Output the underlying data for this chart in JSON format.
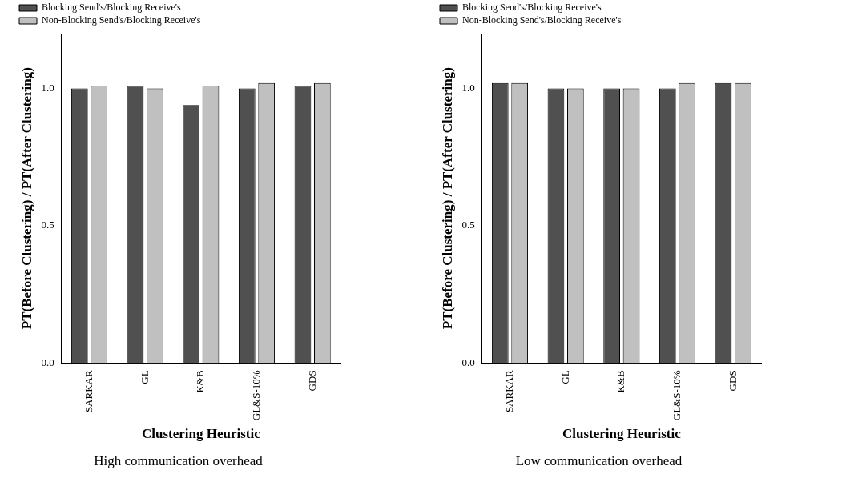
{
  "chart_data": [
    {
      "type": "bar",
      "title": "High communication overhead",
      "xlabel": "Clustering Heuristic",
      "ylabel": "PT(Before Clustering) / PT(After Clustering)",
      "categories": [
        "SARKAR",
        "GL",
        "K&B",
        "GL&S-10%",
        "GDS"
      ],
      "series": [
        {
          "name": "Blocking Send's/Blocking Receive's",
          "color": "#505050",
          "values": [
            1.0,
            1.01,
            0.94,
            1.0,
            1.01
          ]
        },
        {
          "name": "Non-Blocking Send's/Blocking Receive's",
          "color": "#c0c0c0",
          "values": [
            1.01,
            1.0,
            1.01,
            1.02,
            1.02
          ]
        }
      ],
      "ylim": [
        0,
        1.2
      ],
      "yticks": [
        {
          "value": 0,
          "label": "0.0"
        },
        {
          "value": 0.5,
          "label": "0.5"
        },
        {
          "value": 1,
          "label": "1.0"
        }
      ],
      "legend": "top left"
    },
    {
      "type": "bar",
      "title": "Low communication overhead",
      "xlabel": "Clustering Heuristic",
      "ylabel": "PT(Before Clustering) / PT(After Clustering)",
      "categories": [
        "SARKAR",
        "GL",
        "K&B",
        "GL&S-10%",
        "GDS"
      ],
      "series": [
        {
          "name": "Blocking Send's/Blocking Receive's",
          "color": "#505050",
          "values": [
            1.02,
            1.0,
            1.0,
            1.0,
            1.02
          ]
        },
        {
          "name": "Non-Blocking Send's/Blocking Receive's",
          "color": "#c0c0c0",
          "values": [
            1.02,
            1.0,
            1.0,
            1.02,
            1.02
          ]
        }
      ],
      "ylim": [
        0,
        1.2
      ],
      "yticks": [
        {
          "value": 0,
          "label": "0.0"
        },
        {
          "value": 0.5,
          "label": "0.5"
        },
        {
          "value": 1,
          "label": "1.0"
        }
      ],
      "legend": "top left"
    }
  ]
}
